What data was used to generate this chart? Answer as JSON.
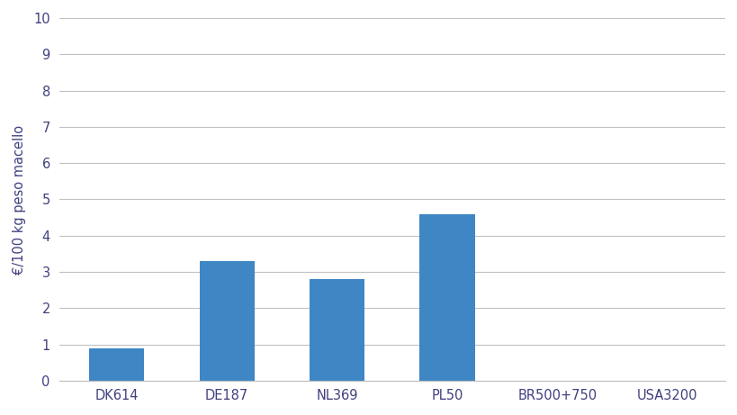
{
  "categories": [
    "DK614",
    "DE187",
    "NL369",
    "PL50",
    "BR500+750",
    "USA3200"
  ],
  "values": [
    0.9,
    3.3,
    2.8,
    4.6,
    0.0,
    0.0
  ],
  "bar_color": "#3F86C4",
  "ylabel": "€/100 kg peso macello",
  "ylim": [
    0,
    10
  ],
  "yticks": [
    0,
    1,
    2,
    3,
    4,
    5,
    6,
    7,
    8,
    9,
    10
  ],
  "background_color": "#ffffff",
  "grid_color": "#c0c0c0",
  "bar_width": 0.5,
  "tick_label_color": "#404080",
  "font_family": "DejaVu Sans",
  "tick_fontsize": 10.5,
  "ylabel_fontsize": 10.5
}
